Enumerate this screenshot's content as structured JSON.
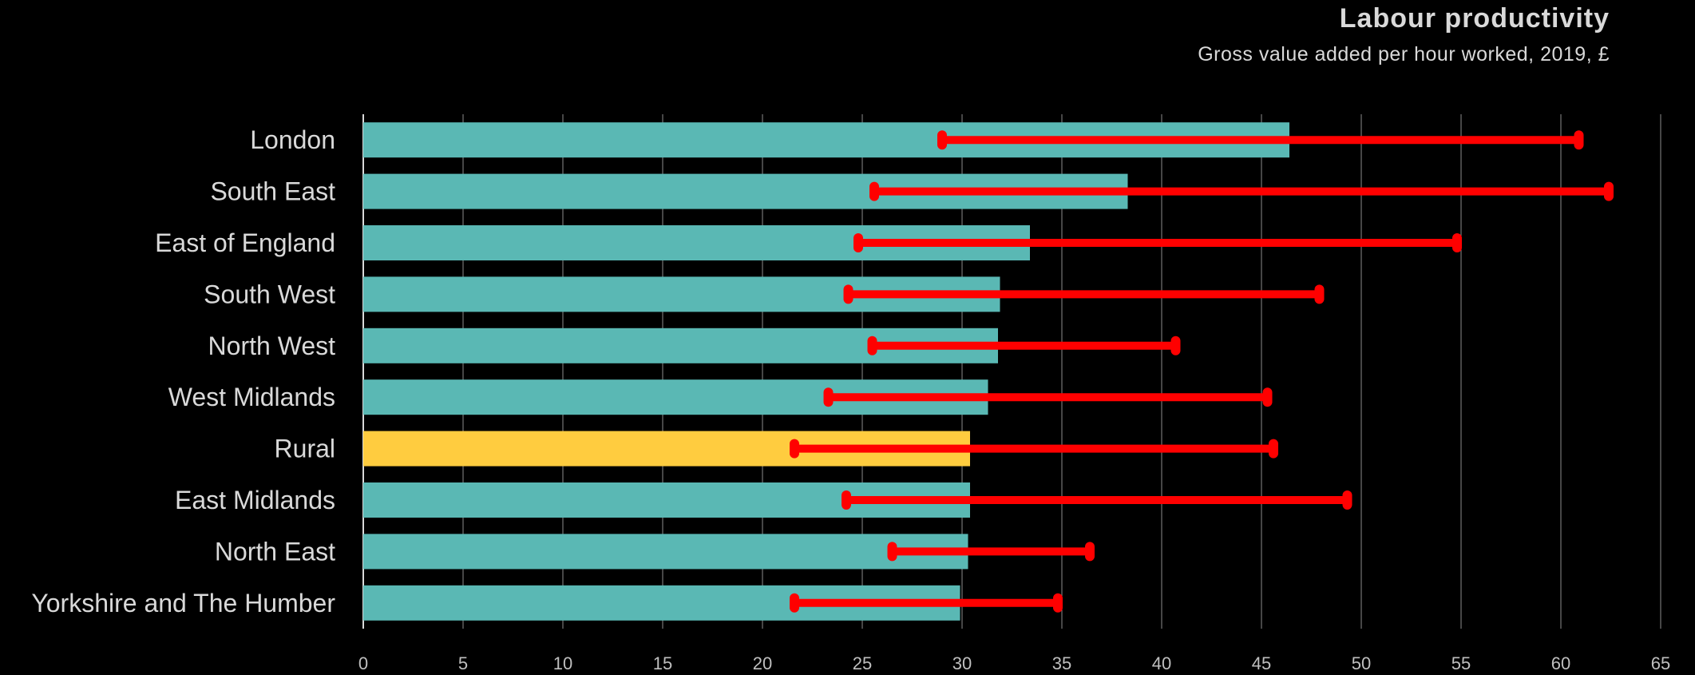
{
  "chart_data": {
    "type": "bar",
    "title": "Labour productivity",
    "subtitle": "Gross value added per hour worked, 2019, £",
    "categories": [
      "London",
      "South East",
      "East of England",
      "South West",
      "North West",
      "West Midlands",
      "Rural",
      "East Midlands",
      "North East",
      "Yorkshire and The Humber"
    ],
    "series": [
      {
        "values": [
          46.4,
          38.3,
          33.4,
          31.9,
          31.8,
          31.3,
          30.4,
          30.4,
          30.3,
          29.9
        ]
      }
    ],
    "ranges": [
      {
        "low": 29.0,
        "high": 60.9
      },
      {
        "low": 25.6,
        "high": 62.4
      },
      {
        "low": 24.8,
        "high": 54.8
      },
      {
        "low": 24.3,
        "high": 47.9
      },
      {
        "low": 25.5,
        "high": 40.7
      },
      {
        "low": 23.3,
        "high": 45.3
      },
      {
        "low": 21.6,
        "high": 45.6
      },
      {
        "low": 24.2,
        "high": 49.3
      },
      {
        "low": 26.5,
        "high": 36.4
      },
      {
        "low": 21.6,
        "high": 34.8
      }
    ],
    "highlight_category": "Rural",
    "x_ticks": [
      0,
      5,
      10,
      15,
      20,
      25,
      30,
      35,
      40,
      45,
      50,
      55,
      60,
      65
    ],
    "xlim": [
      0,
      65
    ],
    "grid": true,
    "legend": "none",
    "colors": {
      "bar": "#5ab8b4",
      "highlight": "#ffcc3f",
      "range": "#ff0000",
      "grid": "#8c8c8c",
      "background": "#000000"
    }
  }
}
